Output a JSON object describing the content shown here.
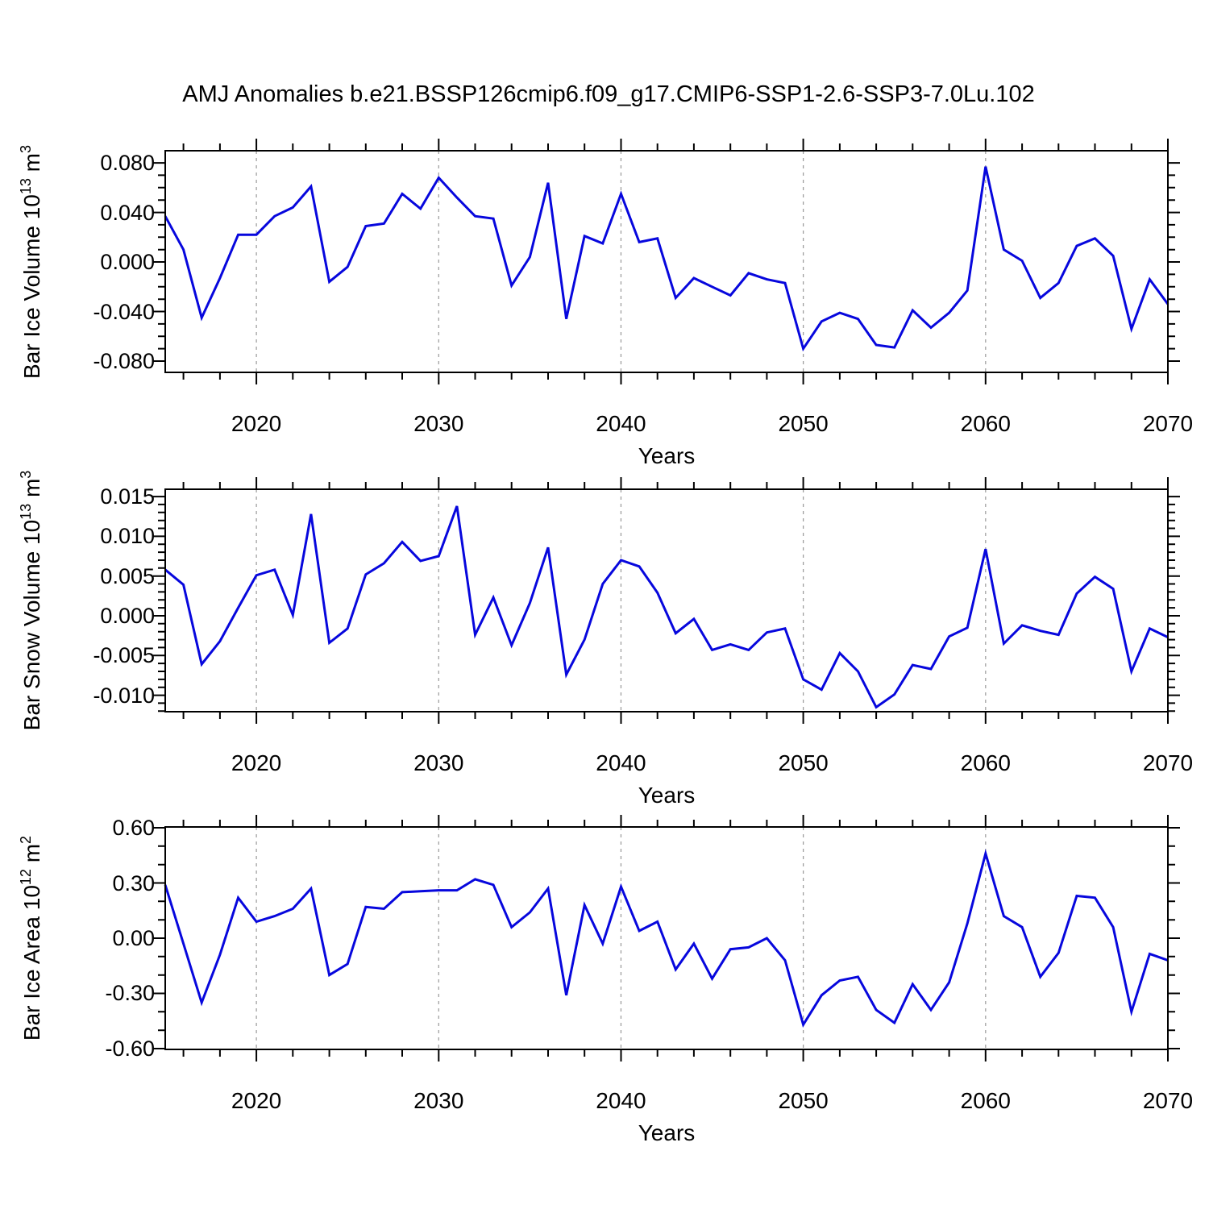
{
  "title": "AMJ Anomalies b.e21.BSSP126cmip6.f09_g17.CMIP6-SSP1-2.6-SSP3-7.0Lu.102",
  "colors": {
    "line": "#0707dd",
    "frame": "#000000",
    "gridline": "#999999",
    "background": "#ffffff",
    "text": "#000000"
  },
  "x_axis": {
    "label": "Years",
    "range": [
      2015,
      2070
    ],
    "major_ticks": [
      2020,
      2030,
      2040,
      2050,
      2060,
      2070
    ],
    "tick_labels": [
      "2020",
      "2030",
      "2040",
      "2050",
      "2060",
      "2070"
    ],
    "minor_step_years": 2,
    "gridline_years": [
      2020,
      2030,
      2040,
      2050,
      2060
    ]
  },
  "chart_data": [
    {
      "type": "line",
      "panel": "ice-volume",
      "ylabel_text": "Bar Ice Volume 10^13 m^3",
      "ylabel_parts": {
        "prefix": "Bar Ice Volume 10",
        "sup1": "13",
        "mid": " m",
        "sup2": "3"
      },
      "xlabel": "Years",
      "x_start": 2015,
      "x_step": 1,
      "ylim": [
        -0.0891,
        0.0898
      ],
      "yticks": [
        0.08,
        0.04,
        0.0,
        -0.04,
        -0.08
      ],
      "ytick_labels": [
        "0.080",
        "0.040",
        "0.000",
        "-0.040",
        "-0.080"
      ],
      "ymajor_step": 0.04,
      "yminor_step": 0.01,
      "grid": "vertical-dashed",
      "legend": null,
      "values": [
        0.037,
        0.01,
        -0.045,
        -0.013,
        0.022,
        0.022,
        0.037,
        0.044,
        0.061,
        -0.016,
        -0.004,
        0.029,
        0.031,
        0.055,
        0.043,
        0.068,
        0.052,
        0.037,
        0.035,
        -0.019,
        0.004,
        0.064,
        -0.046,
        0.021,
        0.015,
        0.055,
        0.016,
        0.019,
        -0.029,
        -0.013,
        -0.02,
        -0.027,
        -0.009,
        -0.014,
        -0.017,
        -0.07,
        -0.048,
        -0.041,
        -0.046,
        -0.067,
        -0.069,
        -0.039,
        -0.053,
        -0.041,
        -0.023,
        0.077,
        0.01,
        0.001,
        -0.029,
        -0.017,
        0.013,
        0.019,
        0.005,
        -0.054,
        -0.014,
        -0.034
      ]
    },
    {
      "type": "line",
      "panel": "snow-volume",
      "ylabel_text": "Bar Snow Volume 10^13 m^3",
      "ylabel_parts": {
        "prefix": "Bar Snow Volume 10",
        "sup1": "13",
        "mid": " m",
        "sup2": "3"
      },
      "xlabel": "Years",
      "x_start": 2015,
      "x_step": 1,
      "ylim": [
        -0.01207,
        0.01592
      ],
      "yticks": [
        0.015,
        0.01,
        0.005,
        0.0,
        -0.005,
        -0.01
      ],
      "ytick_labels": [
        "0.015",
        "0.010",
        "0.005",
        "0.000",
        "-0.005",
        "-0.010"
      ],
      "ymajor_step": 0.005,
      "yminor_step": 0.001,
      "grid": "vertical-dashed",
      "legend": null,
      "values": [
        0.0058,
        0.0039,
        -0.0061,
        -0.0032,
        0.001,
        0.0051,
        0.0058,
        0.0001,
        0.0128,
        -0.0034,
        -0.0016,
        0.0052,
        0.0066,
        0.0093,
        0.0069,
        0.0075,
        0.0138,
        -0.0024,
        0.0023,
        -0.0037,
        0.0016,
        0.0086,
        -0.0074,
        -0.003,
        0.004,
        0.007,
        0.0062,
        0.0029,
        -0.0022,
        -0.0004,
        -0.0043,
        -0.0036,
        -0.0043,
        -0.0021,
        -0.0016,
        -0.008,
        -0.0093,
        -0.0047,
        -0.007,
        -0.0115,
        -0.0099,
        -0.0062,
        -0.0067,
        -0.0026,
        -0.0015,
        0.0084,
        -0.0035,
        -0.0012,
        -0.0019,
        -0.0024,
        0.0028,
        0.0049,
        0.0034,
        -0.007,
        -0.0016,
        -0.0027
      ]
    },
    {
      "type": "line",
      "panel": "ice-area",
      "ylabel_text": "Bar Ice Area 10^12 m^2",
      "ylabel_parts": {
        "prefix": "Bar Ice Area 10",
        "sup1": "12",
        "mid": " m",
        "sup2": "2"
      },
      "xlabel": "Years",
      "x_start": 2015,
      "x_step": 1,
      "ylim": [
        -0.6044,
        0.6044
      ],
      "yticks": [
        0.6,
        0.3,
        0.0,
        -0.3,
        -0.6
      ],
      "ytick_labels": [
        "0.60",
        "0.30",
        "0.00",
        "-0.30",
        "-0.60"
      ],
      "ymajor_step": 0.3,
      "yminor_step": 0.1,
      "grid": "vertical-dashed",
      "legend": null,
      "values": [
        0.29,
        -0.03,
        -0.35,
        -0.09,
        0.22,
        0.09,
        0.12,
        0.16,
        0.27,
        -0.2,
        -0.14,
        0.17,
        0.16,
        0.25,
        0.255,
        0.26,
        0.26,
        0.32,
        0.29,
        0.06,
        0.14,
        0.27,
        -0.31,
        0.18,
        -0.03,
        0.28,
        0.04,
        0.09,
        -0.17,
        -0.03,
        -0.22,
        -0.06,
        -0.05,
        0.0,
        -0.12,
        -0.47,
        -0.31,
        -0.23,
        -0.21,
        -0.39,
        -0.46,
        -0.25,
        -0.39,
        -0.24,
        0.08,
        0.46,
        0.12,
        0.06,
        -0.21,
        -0.08,
        0.23,
        0.22,
        0.06,
        -0.4,
        -0.085,
        -0.12
      ]
    }
  ]
}
